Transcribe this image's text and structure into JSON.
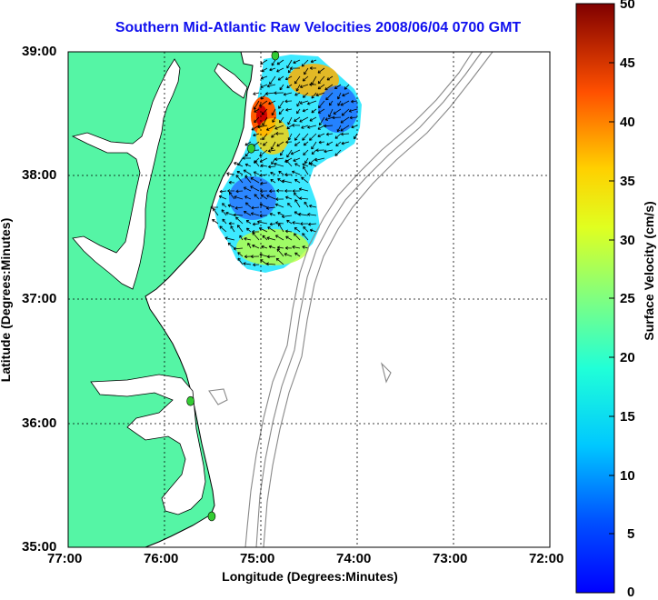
{
  "title": "Southern Mid-Atlantic Raw Velocities 2008/06/04 0700 GMT",
  "axes": {
    "xlabel": "Longitude (Degrees:Minutes)",
    "ylabel": "Latitude (Degrees:Minutes)",
    "xticks": [
      "77:00",
      "76:00",
      "75:00",
      "74:00",
      "73:00",
      "72:00"
    ],
    "yticks": [
      "39:00",
      "38:00",
      "37:00",
      "36:00",
      "35:00"
    ]
  },
  "colorbar": {
    "label": "Surface Velocity (cm/s)",
    "min": 0,
    "max": 50,
    "ticks": [
      "50",
      "45",
      "40",
      "35",
      "30",
      "25",
      "20",
      "15",
      "10",
      "5",
      "0"
    ]
  },
  "colors": {
    "land": "#55f5a5",
    "water": "#ffffff",
    "title": "#1010ee",
    "station": "#33cc33",
    "bathymetry": "#888888"
  },
  "stations": [
    {
      "lon": -74.85,
      "lat": 38.97
    },
    {
      "lon": -75.1,
      "lat": 38.22
    },
    {
      "lon": -75.73,
      "lat": 36.18
    },
    {
      "lon": -75.51,
      "lat": 35.25
    }
  ]
}
